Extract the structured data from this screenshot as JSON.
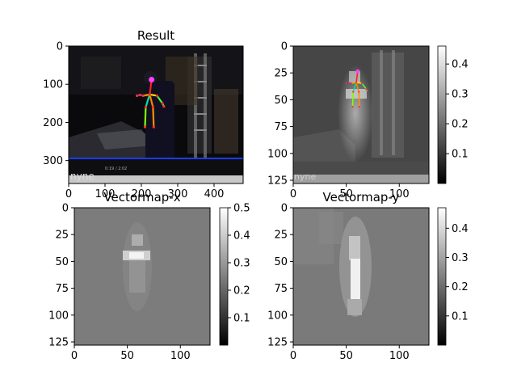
{
  "figure": {
    "background": "#ffffff"
  },
  "chart_data": [
    {
      "id": "result",
      "type": "heatmap",
      "title": "Result",
      "xlim": [
        0,
        480
      ],
      "ylim": [
        360,
        0
      ],
      "xticks": [
        0,
        100,
        200,
        300,
        400
      ],
      "yticks": [
        0,
        100,
        200,
        300
      ],
      "colorbar": null,
      "video_watermark": "nyne",
      "video_timestamp": "0:19 / 2:02",
      "skeleton": {
        "joints": [
          {
            "name": "head",
            "x": 228,
            "y": 88
          },
          {
            "name": "neck",
            "x": 223,
            "y": 127
          },
          {
            "name": "r_shoulder",
            "x": 205,
            "y": 130
          },
          {
            "name": "l_shoulder",
            "x": 243,
            "y": 130
          },
          {
            "name": "r_elbow",
            "x": 196,
            "y": 128
          },
          {
            "name": "l_elbow",
            "x": 258,
            "y": 150
          },
          {
            "name": "r_wrist",
            "x": 188,
            "y": 130
          },
          {
            "name": "l_wrist",
            "x": 262,
            "y": 158
          },
          {
            "name": "r_hip",
            "x": 212,
            "y": 160
          },
          {
            "name": "l_hip",
            "x": 232,
            "y": 160
          },
          {
            "name": "r_ankle",
            "x": 210,
            "y": 212
          },
          {
            "name": "l_ankle",
            "x": 234,
            "y": 212
          }
        ],
        "limbs": [
          {
            "a": "head",
            "b": "neck",
            "color": "#ff2020"
          },
          {
            "a": "neck",
            "b": "r_shoulder",
            "color": "#ff9b00"
          },
          {
            "a": "r_shoulder",
            "b": "r_elbow",
            "color": "#2060ff"
          },
          {
            "a": "r_elbow",
            "b": "r_wrist",
            "color": "#2040ff"
          },
          {
            "a": "neck",
            "b": "l_shoulder",
            "color": "#ffe000"
          },
          {
            "a": "l_shoulder",
            "b": "l_elbow",
            "color": "#40ff40"
          },
          {
            "a": "l_elbow",
            "b": "l_wrist",
            "color": "#00ff80"
          },
          {
            "a": "neck",
            "b": "r_hip",
            "color": "#00e0a0"
          },
          {
            "a": "r_hip",
            "b": "r_ankle",
            "color": "#80ff00"
          },
          {
            "a": "neck",
            "b": "l_hip",
            "color": "#ff8000"
          },
          {
            "a": "l_hip",
            "b": "l_ankle",
            "color": "#ff9000"
          }
        ],
        "head_color": "#ff40ff"
      }
    },
    {
      "id": "heatmap",
      "type": "heatmap",
      "title": "",
      "xlim": [
        0,
        128
      ],
      "ylim": [
        128,
        0
      ],
      "xticks": [
        0,
        50,
        100
      ],
      "yticks": [
        0,
        25,
        50,
        75,
        100,
        125
      ],
      "colorbar": {
        "min": 0.0,
        "max": 0.46,
        "ticks": [
          0.1,
          0.2,
          0.3,
          0.4
        ]
      }
    },
    {
      "id": "vectormap_x",
      "type": "heatmap",
      "title": "Vectormap-x",
      "xlim": [
        0,
        128
      ],
      "ylim": [
        128,
        0
      ],
      "xticks": [
        0,
        50,
        100
      ],
      "yticks": [
        0,
        25,
        50,
        75,
        100,
        125
      ],
      "colorbar": {
        "min": 0.0,
        "max": 0.5,
        "ticks": [
          0.1,
          0.2,
          0.3,
          0.4,
          0.5
        ]
      }
    },
    {
      "id": "vectormap_y",
      "type": "heatmap",
      "title": "Vectormap-y",
      "xlim": [
        0,
        128
      ],
      "ylim": [
        128,
        0
      ],
      "xticks": [
        0,
        50,
        100
      ],
      "yticks": [
        0,
        25,
        50,
        75,
        100,
        125
      ],
      "colorbar": {
        "min": 0.0,
        "max": 0.47,
        "ticks": [
          0.1,
          0.2,
          0.3,
          0.4
        ]
      }
    }
  ]
}
